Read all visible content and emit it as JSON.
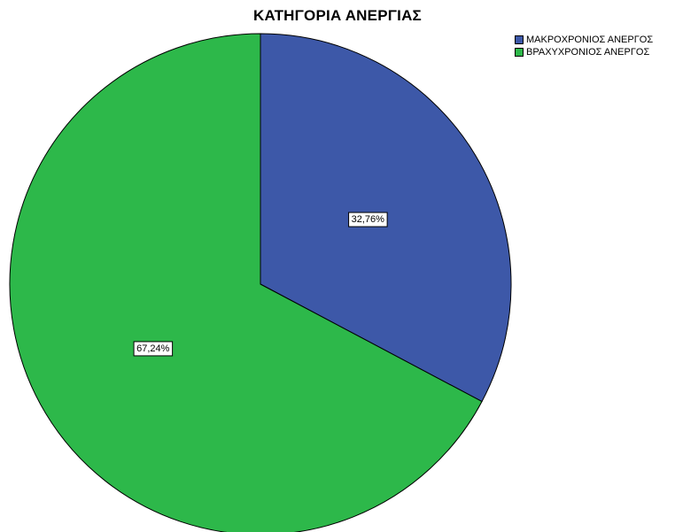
{
  "chart_data": {
    "type": "pie",
    "title": "ΚΑΤΗΓΟΡΙΑ ΑΝΕΡΓΙΑΣ",
    "legend_position": "top-right",
    "slices": [
      {
        "name": "ΜΑΚΡΟΧΡΟΝΙΟΣ ΑΝΕΡΓΟΣ",
        "value": 32.76,
        "label": "32,76%",
        "color": "#3d58a8"
      },
      {
        "name": "ΒΡΑΧΥΧΡΟΝΙΟΣ ΑΝΕΡΓΟΣ",
        "value": 67.24,
        "label": "67,24%",
        "color": "#2db84a"
      }
    ]
  }
}
